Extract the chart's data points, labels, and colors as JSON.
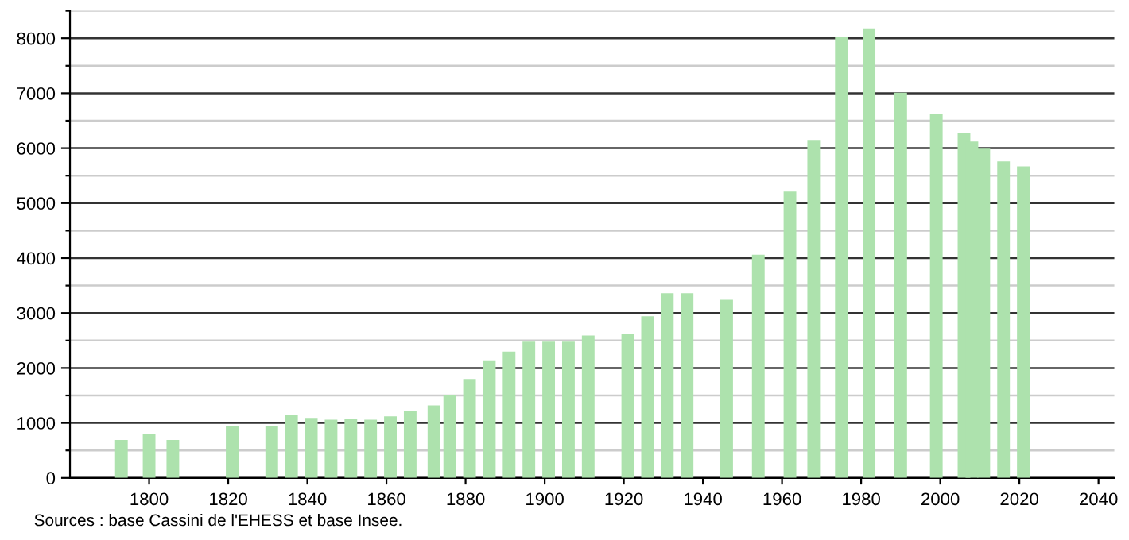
{
  "chart_data": {
    "type": "bar",
    "x": [
      1793,
      1800,
      1806,
      1821,
      1831,
      1836,
      1841,
      1846,
      1851,
      1856,
      1861,
      1866,
      1872,
      1876,
      1881,
      1886,
      1891,
      1896,
      1901,
      1906,
      1911,
      1921,
      1926,
      1931,
      1936,
      1946,
      1954,
      1962,
      1968,
      1975,
      1982,
      1990,
      1999,
      2006,
      2008,
      2011,
      2016,
      2021
    ],
    "values": [
      690,
      800,
      690,
      950,
      950,
      1150,
      1090,
      1060,
      1070,
      1060,
      1120,
      1210,
      1320,
      1500,
      1800,
      2140,
      2300,
      2480,
      2480,
      2480,
      2590,
      2620,
      2940,
      3360,
      3360,
      3240,
      4060,
      5210,
      6150,
      8020,
      8180,
      7010,
      6620,
      6270,
      6120,
      5990,
      5760,
      5670
    ],
    "color": "#ade2ad",
    "xlim": [
      1780,
      2044
    ],
    "xticks": [
      1800,
      1820,
      1840,
      1860,
      1880,
      1900,
      1920,
      1940,
      1960,
      1980,
      2000,
      2020,
      2040
    ],
    "ylim": [
      0,
      8500
    ],
    "yticks": [
      0,
      {
        "value": 500,
        "label": null
      },
      1000,
      {
        "value": 1500,
        "label": null
      },
      2000,
      {
        "value": 2500,
        "label": null
      },
      3000,
      {
        "value": 3500,
        "label": null
      },
      4000,
      {
        "value": 4500,
        "label": null
      },
      5000,
      {
        "value": 5500,
        "label": null
      },
      6000,
      {
        "value": 6500,
        "label": null
      },
      7000,
      {
        "value": 7500,
        "label": null
      },
      8000,
      {
        "value": 8500,
        "label": null
      }
    ],
    "grid": "y",
    "annotations": [
      "Sources : base Cassini de l'EHESS et base Insee."
    ]
  }
}
